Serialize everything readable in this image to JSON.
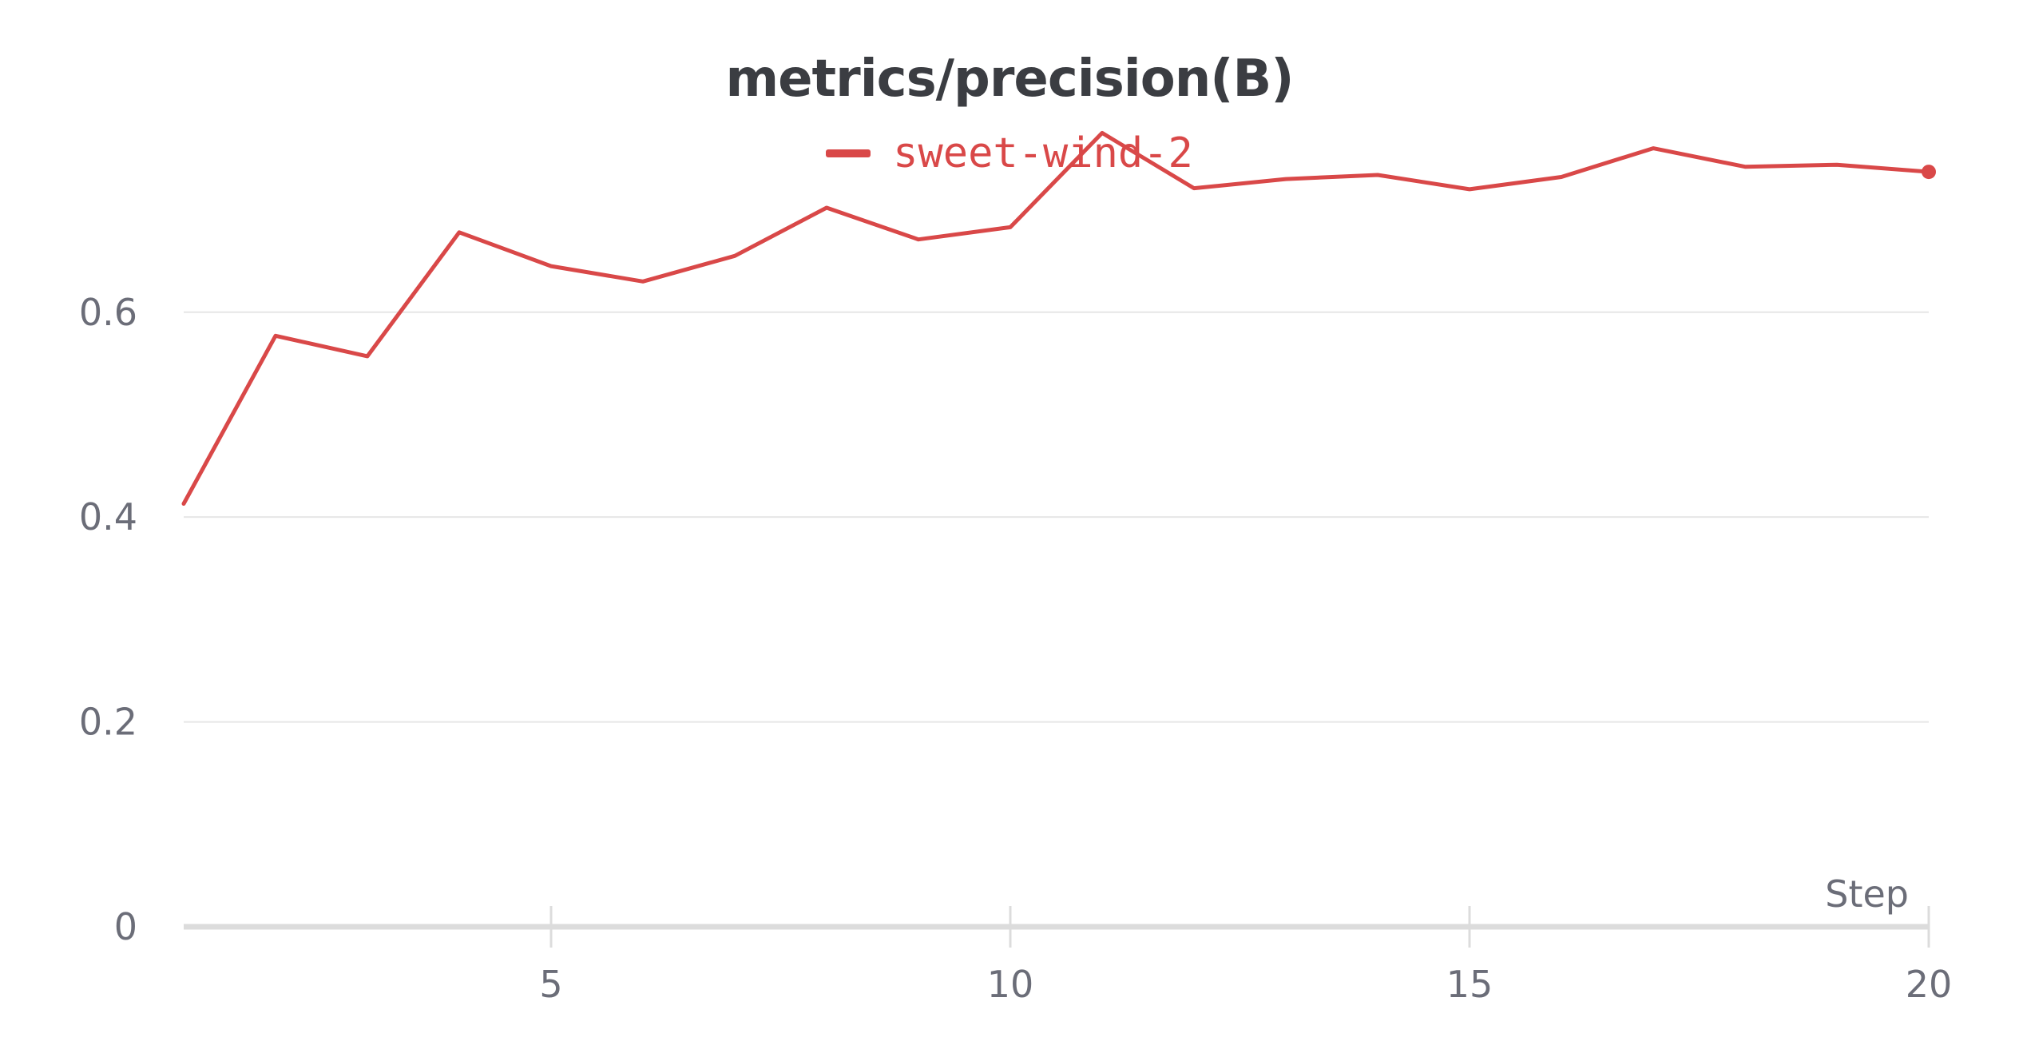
{
  "colors": {
    "series": "#d94848",
    "grid": "#e6e6e6",
    "axis": "#dcdcdc",
    "text": "#6b6d78",
    "title": "#3b3d42"
  },
  "chart_data": {
    "type": "line",
    "title": "metrics/precision(B)",
    "xlabel": "Step",
    "ylabel": "",
    "xlim": [
      1,
      20
    ],
    "ylim": [
      0,
      0.78
    ],
    "xticks": [
      5,
      10,
      15,
      20
    ],
    "yticks": [
      0,
      0.2,
      0.4,
      0.6
    ],
    "ytick_labels": [
      "0",
      "0.2",
      "0.4",
      "0.6"
    ],
    "xtick_labels": [
      "5",
      "10",
      "15",
      "20"
    ],
    "grid": true,
    "legend_position": "top-center",
    "series": [
      {
        "name": "sweet-wind-2",
        "color": "#d94848",
        "x": [
          1,
          2,
          3,
          4,
          5,
          6,
          7,
          8,
          9,
          10,
          11,
          12,
          13,
          14,
          15,
          16,
          17,
          18,
          19,
          20
        ],
        "y": [
          0.413,
          0.577,
          0.557,
          0.678,
          0.645,
          0.63,
          0.655,
          0.702,
          0.671,
          0.683,
          0.775,
          0.721,
          0.73,
          0.734,
          0.72,
          0.732,
          0.76,
          0.742,
          0.744,
          0.737
        ]
      }
    ]
  }
}
